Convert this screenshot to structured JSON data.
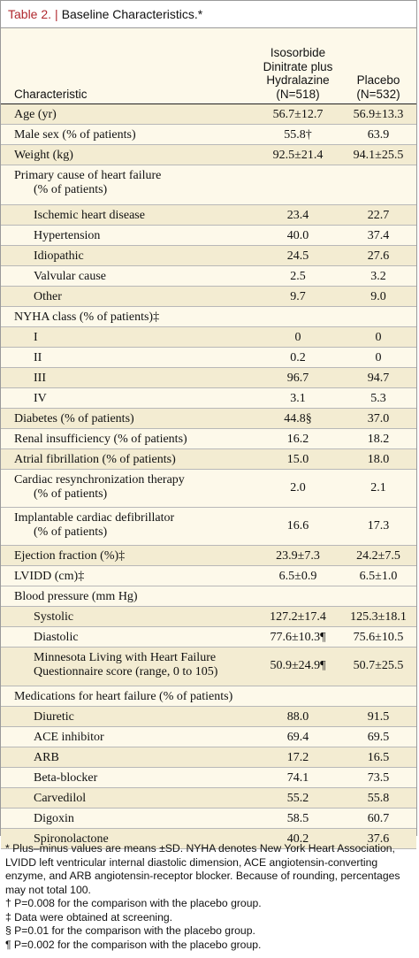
{
  "table": {
    "number": "Table 2.",
    "title": "Baseline Characteristics.*",
    "header": {
      "characteristic": "Characteristic",
      "col1_line1": "Isosorbide",
      "col1_line2": "Dinitrate plus",
      "col1_line3": "Hydralazine",
      "col1_line4": "(N=518)",
      "col2_line1": "Placebo",
      "col2_line2": "(N=532)"
    },
    "rows": [
      {
        "label": "Age (yr)",
        "v1": "56.7±12.7",
        "v2": "56.9±13.3"
      },
      {
        "label": "Male sex (% of patients)",
        "v1": "55.8†",
        "v2": "63.9"
      },
      {
        "label": "Weight (kg)",
        "v1": "92.5±21.4",
        "v2": "94.1±25.5"
      },
      {
        "label": "Primary cause of heart failure",
        "label2": "(% of patients)",
        "v1": "",
        "v2": ""
      },
      {
        "label": "Ischemic heart disease",
        "v1": "23.4",
        "v2": "22.7"
      },
      {
        "label": "Hypertension",
        "v1": "40.0",
        "v2": "37.4"
      },
      {
        "label": "Idiopathic",
        "v1": "24.5",
        "v2": "27.6"
      },
      {
        "label": "Valvular cause",
        "v1": "2.5",
        "v2": "3.2"
      },
      {
        "label": "Other",
        "v1": "9.7",
        "v2": "9.0"
      },
      {
        "label": "NYHA class (% of patients)‡",
        "v1": "",
        "v2": ""
      },
      {
        "label": "I",
        "v1": "0",
        "v2": "0"
      },
      {
        "label": "II",
        "v1": "0.2",
        "v2": "0"
      },
      {
        "label": "III",
        "v1": "96.7",
        "v2": "94.7"
      },
      {
        "label": "IV",
        "v1": "3.1",
        "v2": "5.3"
      },
      {
        "label": "Diabetes (% of patients)",
        "v1": "44.8§",
        "v2": "37.0"
      },
      {
        "label": "Renal insufficiency (% of patients)",
        "v1": "16.2",
        "v2": "18.2"
      },
      {
        "label": "Atrial fibrillation (% of patients)",
        "v1": "15.0",
        "v2": "18.0"
      },
      {
        "label": "Cardiac resynchronization therapy",
        "label2": "(% of patients)",
        "v1": "2.0",
        "v2": "2.1"
      },
      {
        "label": "Implantable cardiac defibrillator",
        "label2": "(% of patients)",
        "v1": "16.6",
        "v2": "17.3"
      },
      {
        "label": "Ejection fraction (%)‡",
        "v1": "23.9±7.3",
        "v2": "24.2±7.5"
      },
      {
        "label": "LVIDD (cm)‡",
        "v1": "6.5±0.9",
        "v2": "6.5±1.0"
      },
      {
        "label": "Blood pressure (mm Hg)",
        "v1": "",
        "v2": ""
      },
      {
        "label": "Systolic",
        "v1": "127.2±17.4",
        "v2": "125.3±18.1"
      },
      {
        "label": "Diastolic",
        "v1": "77.6±10.3¶",
        "v2": "75.6±10.5"
      },
      {
        "label": "Minnesota Living with Heart Failure",
        "label2": "Questionnaire score (range, 0 to 105)",
        "v1": "50.9±24.9¶",
        "v2": "50.7±25.5"
      },
      {
        "label": "Medications for heart failure (% of patients)",
        "v1": "",
        "v2": ""
      },
      {
        "label": "Diuretic",
        "v1": "88.0",
        "v2": "91.5"
      },
      {
        "label": "ACE inhibitor",
        "v1": "69.4",
        "v2": "69.5"
      },
      {
        "label": "ARB",
        "v1": "17.2",
        "v2": "16.5"
      },
      {
        "label": "Beta-blocker",
        "v1": "74.1",
        "v2": "73.5"
      },
      {
        "label": "Carvedilol",
        "v1": "55.2",
        "v2": "55.8"
      },
      {
        "label": "Digoxin",
        "v1": "58.5",
        "v2": "60.7"
      },
      {
        "label": "Spironolactone",
        "v1": "40.2",
        "v2": "37.6"
      }
    ]
  },
  "footnotes": [
    "* Plus–minus values are means ±SD. NYHA denotes New York Heart Association, LVIDD left ventricular internal diastolic dimension, ACE angiotensin-converting enzyme, and ARB angiotensin-receptor blocker. Because of rounding, percentages may not total 100.",
    "† P=0.008 for the comparison with the placebo group.",
    "‡ Data were obtained at screening.",
    "§ P=0.01 for the comparison with the placebo group.",
    "¶ P=0.002 for the comparison with the placebo group."
  ],
  "colors": {
    "title_accent": "#b0282e",
    "background": "#fdf9ea",
    "shaded_row": "#f3ecd2"
  }
}
